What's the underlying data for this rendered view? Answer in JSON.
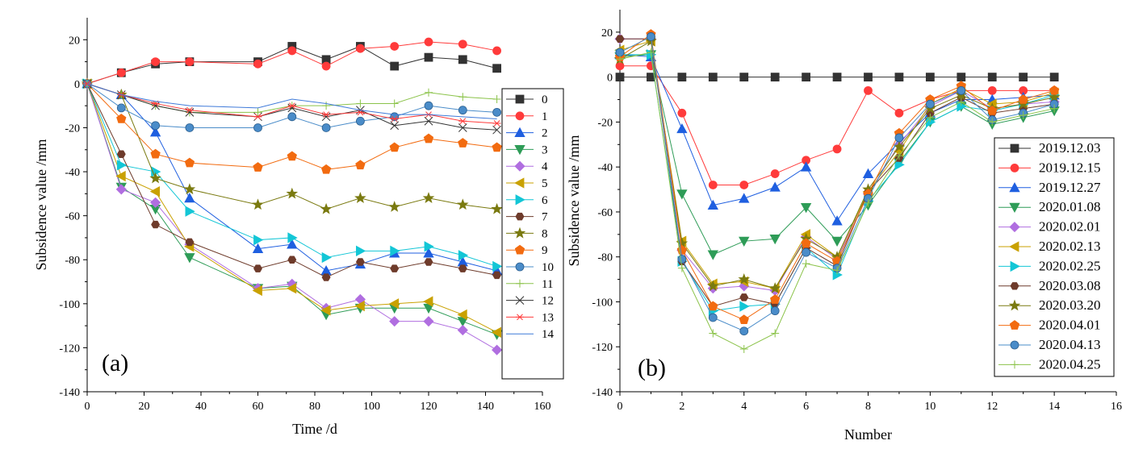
{
  "chart_data": [
    {
      "type": "line",
      "panel_label": "(a)",
      "xlabel": "Time /d",
      "ylabel": "Subsidence value /mm",
      "xlim": [
        0,
        160
      ],
      "ylim": [
        -140,
        30
      ],
      "xticks": [
        0,
        20,
        40,
        60,
        80,
        100,
        120,
        140,
        160
      ],
      "yticks": [
        20,
        0,
        -20,
        -40,
        -60,
        -80,
        -100,
        -120,
        -140
      ],
      "grid": false,
      "legend_position": "right",
      "x": [
        0,
        12,
        24,
        36,
        60,
        72,
        84,
        96,
        108,
        120,
        132,
        144
      ],
      "series": [
        {
          "name": "0",
          "color": "#333333",
          "marker": "square",
          "values": [
            0,
            5,
            9,
            10,
            10,
            17,
            11,
            17,
            8,
            12,
            11,
            7
          ]
        },
        {
          "name": "1",
          "color": "#ff3b3b",
          "marker": "circle",
          "values": [
            0,
            5,
            10,
            10,
            9,
            15,
            8,
            16,
            17,
            19,
            18,
            15
          ]
        },
        {
          "name": "2",
          "color": "#1f5fe0",
          "marker": "triangle-up",
          "values": [
            0,
            -5,
            -22,
            -52,
            -75,
            -73,
            -85,
            -82,
            -77,
            -77,
            -81,
            -85
          ]
        },
        {
          "name": "3",
          "color": "#2e9c57",
          "marker": "triangle-down",
          "values": [
            0,
            -47,
            -57,
            -79,
            -93,
            -92,
            -105,
            -102,
            -102,
            -102,
            -108,
            -114
          ]
        },
        {
          "name": "4",
          "color": "#b06ee0",
          "marker": "diamond",
          "values": [
            0,
            -48,
            -54,
            -73,
            -93,
            -91,
            -102,
            -98,
            -108,
            -108,
            -112,
            -121
          ]
        },
        {
          "name": "5",
          "color": "#c9a100",
          "marker": "triangle-left",
          "values": [
            0,
            -42,
            -49,
            -74,
            -94,
            -93,
            -103,
            -101,
            -100,
            -99,
            -105,
            -113
          ]
        },
        {
          "name": "6",
          "color": "#13c6d6",
          "marker": "triangle-right",
          "values": [
            0,
            -37,
            -40,
            -58,
            -71,
            -70,
            -79,
            -76,
            -76,
            -74,
            -78,
            -83
          ]
        },
        {
          "name": "7",
          "color": "#6e3b2b",
          "marker": "hexagon",
          "values": [
            0,
            -32,
            -64,
            -72,
            -84,
            -80,
            -88,
            -81,
            -84,
            -81,
            -84,
            -87
          ]
        },
        {
          "name": "8",
          "color": "#7a7a10",
          "marker": "star",
          "values": [
            0,
            -5,
            -43,
            -48,
            -55,
            -50,
            -57,
            -52,
            -56,
            -52,
            -55,
            -57
          ]
        },
        {
          "name": "9",
          "color": "#f26b10",
          "marker": "pentagon",
          "values": [
            0,
            -16,
            -32,
            -36,
            -38,
            -33,
            -39,
            -37,
            -29,
            -25,
            -27,
            -29
          ]
        },
        {
          "name": "10",
          "color": "#4a8cc9",
          "marker": "sphere",
          "values": [
            0,
            -11,
            -19,
            -20,
            -20,
            -15,
            -20,
            -17,
            -15,
            -10,
            -12,
            -13
          ]
        },
        {
          "name": "11",
          "color": "#8bc34a",
          "marker": "plus",
          "values": [
            0,
            -5,
            -10,
            -13,
            -13,
            -10,
            -10,
            -9,
            -9,
            -4,
            -6,
            -7
          ]
        },
        {
          "name": "12",
          "color": "#333333",
          "marker": "x",
          "values": [
            0,
            -5,
            -10,
            -13,
            -15,
            -11,
            -15,
            -12,
            -19,
            -17,
            -20,
            -21
          ]
        },
        {
          "name": "13",
          "color": "#ff3b3b",
          "marker": "asterisk",
          "values": [
            0,
            -5,
            -9,
            -12,
            -15,
            -10,
            -14,
            -13,
            -16,
            -14,
            -17,
            -18
          ]
        },
        {
          "name": "14",
          "color": "#3f7ad9",
          "marker": "none",
          "values": [
            0,
            -5,
            -8,
            -10,
            -11,
            -7,
            -9,
            -12,
            -14,
            -14,
            -15,
            -16
          ]
        }
      ]
    },
    {
      "type": "line",
      "panel_label": "(b)",
      "xlabel": "Number",
      "ylabel": "Subsidence value /mm",
      "xlim": [
        0,
        16
      ],
      "ylim": [
        -140,
        30
      ],
      "xticks": [
        0,
        2,
        4,
        6,
        8,
        10,
        12,
        14,
        16
      ],
      "yticks": [
        20,
        0,
        -20,
        -40,
        -60,
        -80,
        -100,
        -120,
        -140
      ],
      "grid": false,
      "legend_position": "right",
      "x": [
        0,
        1,
        2,
        3,
        4,
        5,
        6,
        7,
        8,
        9,
        10,
        11,
        12,
        13,
        14
      ],
      "series": [
        {
          "name": "2019.12.03",
          "color": "#333333",
          "marker": "square",
          "values": [
            0,
            0,
            0,
            0,
            0,
            0,
            0,
            0,
            0,
            0,
            0,
            0,
            0,
            0,
            0
          ]
        },
        {
          "name": "2019.12.15",
          "color": "#ff3b3b",
          "marker": "circle",
          "values": [
            5,
            5,
            -16,
            -48,
            -48,
            -43,
            -37,
            -32,
            -6,
            -16,
            -10,
            -6,
            -6,
            -6,
            -6
          ]
        },
        {
          "name": "2019.12.27",
          "color": "#1f5fe0",
          "marker": "triangle-up",
          "values": [
            10,
            9,
            -23,
            -57,
            -54,
            -49,
            -40,
            -64,
            -43,
            -29,
            -16,
            -10,
            -10,
            -9,
            -8
          ]
        },
        {
          "name": "2020.01.08",
          "color": "#2e9c57",
          "marker": "triangle-down",
          "values": [
            9,
            10,
            -52,
            -79,
            -73,
            -72,
            -58,
            -73,
            -57,
            -38,
            -20,
            -13,
            -21,
            -18,
            -15
          ]
        },
        {
          "name": "2020.02.01",
          "color": "#b06ee0",
          "marker": "diamond",
          "values": [
            17,
            17,
            -77,
            -94,
            -93,
            -95,
            -71,
            -81,
            -52,
            -30,
            -13,
            -6,
            -14,
            -12,
            -11
          ]
        },
        {
          "name": "2020.02.13",
          "color": "#c9a100",
          "marker": "triangle-left",
          "values": [
            12,
            16,
            -73,
            -92,
            -91,
            -94,
            -70,
            -80,
            -51,
            -33,
            -12,
            -5,
            -12,
            -11,
            -7
          ]
        },
        {
          "name": "2020.02.25",
          "color": "#13c6d6",
          "marker": "triangle-right",
          "values": [
            10,
            10,
            -82,
            -104,
            -102,
            -101,
            -76,
            -88,
            -55,
            -39,
            -20,
            -13,
            -15,
            -12,
            -8
          ]
        },
        {
          "name": "2020.03.08",
          "color": "#6e3b2b",
          "marker": "hexagon",
          "values": [
            17,
            17,
            -82,
            -102,
            -98,
            -101,
            -76,
            -84,
            -51,
            -36,
            -16,
            -9,
            -16,
            -14,
            -12
          ]
        },
        {
          "name": "2020.03.20",
          "color": "#7a7a10",
          "marker": "star",
          "values": [
            8,
            16,
            -74,
            -93,
            -90,
            -94,
            -72,
            -80,
            -50,
            -31,
            -14,
            -8,
            -14,
            -12,
            -9
          ]
        },
        {
          "name": "2020.04.01",
          "color": "#f26b10",
          "marker": "pentagon",
          "values": [
            9,
            19,
            -77,
            -102,
            -108,
            -99,
            -74,
            -82,
            -52,
            -25,
            -10,
            -4,
            -15,
            -10,
            -6
          ]
        },
        {
          "name": "2020.04.13",
          "color": "#4a8cc9",
          "marker": "sphere",
          "values": [
            11,
            18,
            -81,
            -107,
            -113,
            -104,
            -78,
            -85,
            -54,
            -27,
            -12,
            -6,
            -19,
            -16,
            -12
          ]
        },
        {
          "name": "2020.04.25",
          "color": "#8bc34a",
          "marker": "plus",
          "values": [
            8,
            11,
            -85,
            -114,
            -121,
            -114,
            -83,
            -86,
            -56,
            -35,
            -18,
            -11,
            -20,
            -17,
            -14
          ]
        }
      ]
    }
  ]
}
